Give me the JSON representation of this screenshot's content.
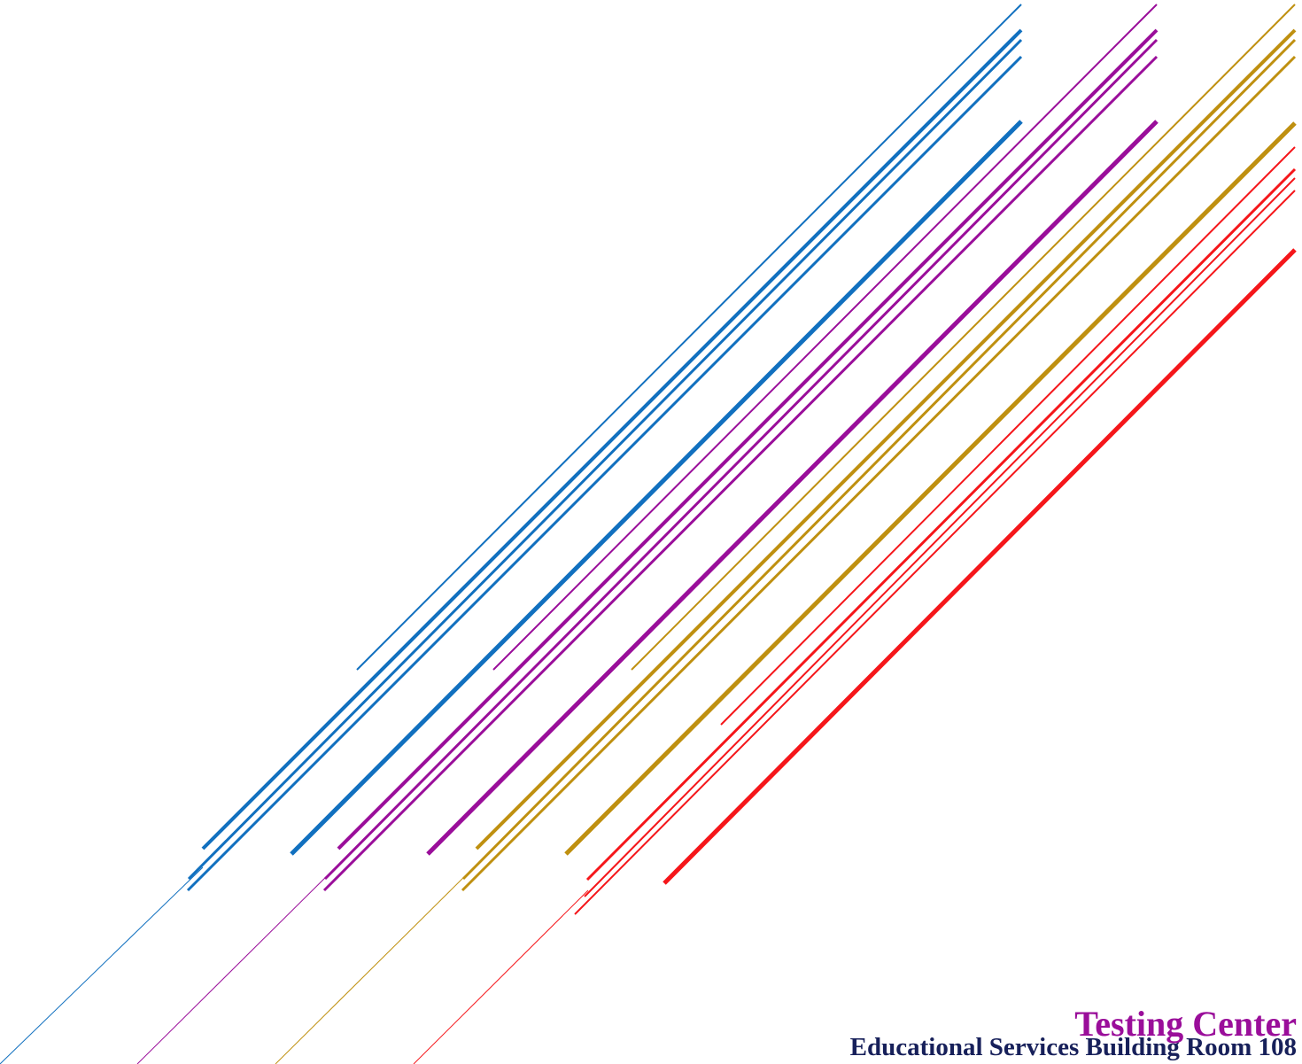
{
  "header": {
    "title": "Testing Center",
    "subtitle": "Educational Services Building Room 108"
  },
  "colors": {
    "blue": "#1170bf",
    "purple": "#9a0e9a",
    "gold": "#bf9010",
    "red": "#f5161a",
    "title": "#9a0e9a",
    "subtitle": "#17205a"
  }
}
